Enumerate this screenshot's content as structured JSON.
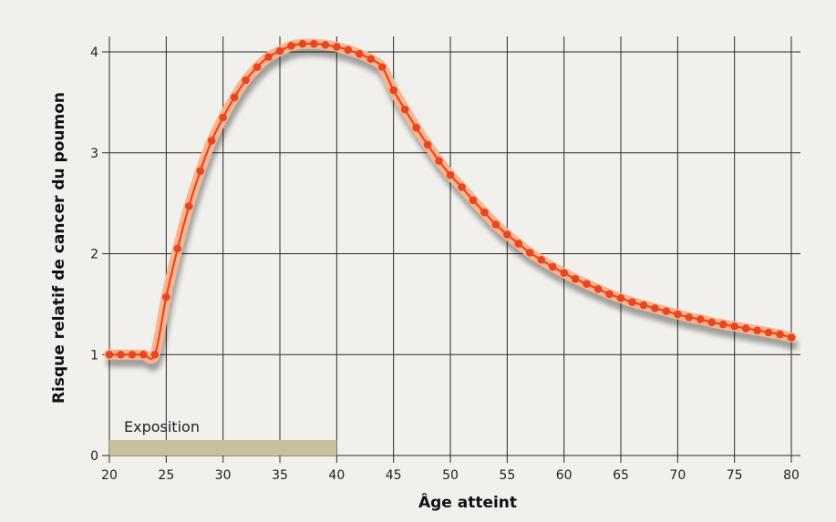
{
  "chart_data": {
    "type": "line",
    "xlabel": "Âge atteint",
    "ylabel": "Risque relatif de cancer du poumon",
    "xlim": [
      20,
      80
    ],
    "ylim": [
      0,
      4
    ],
    "x_ticks": [
      "20",
      "25",
      "30",
      "35",
      "40",
      "45",
      "50",
      "55",
      "60",
      "65",
      "70",
      "75",
      "80"
    ],
    "y_ticks": [
      "0",
      "1",
      "2",
      "3",
      "4"
    ],
    "grid": true,
    "series": [
      {
        "color": "#e8461f",
        "x": [
          20,
          21,
          22,
          23,
          24,
          25,
          26,
          27,
          28,
          29,
          30,
          31,
          32,
          33,
          34,
          35,
          36,
          37,
          38,
          39,
          40,
          41,
          42,
          43,
          44,
          45,
          46,
          47,
          48,
          49,
          50,
          51,
          52,
          53,
          54,
          55,
          56,
          57,
          58,
          59,
          60,
          61,
          62,
          63,
          64,
          65,
          66,
          67,
          68,
          69,
          70,
          71,
          72,
          73,
          74,
          75,
          76,
          77,
          78,
          79,
          80
        ],
        "y": [
          1.0,
          1.0,
          1.0,
          1.0,
          1.0,
          1.57,
          2.05,
          2.47,
          2.82,
          3.12,
          3.35,
          3.55,
          3.72,
          3.85,
          3.95,
          4.01,
          4.06,
          4.08,
          4.08,
          4.07,
          4.05,
          4.02,
          3.98,
          3.93,
          3.85,
          3.62,
          3.43,
          3.25,
          3.08,
          2.92,
          2.78,
          2.66,
          2.53,
          2.41,
          2.29,
          2.19,
          2.1,
          2.01,
          1.94,
          1.87,
          1.81,
          1.75,
          1.7,
          1.65,
          1.6,
          1.56,
          1.52,
          1.49,
          1.46,
          1.43,
          1.4,
          1.37,
          1.35,
          1.32,
          1.3,
          1.28,
          1.26,
          1.24,
          1.22,
          1.2,
          1.17
        ]
      }
    ],
    "exposure": {
      "label": "Exposition",
      "from": 20,
      "to": 40,
      "color": "#c8c09c"
    }
  }
}
